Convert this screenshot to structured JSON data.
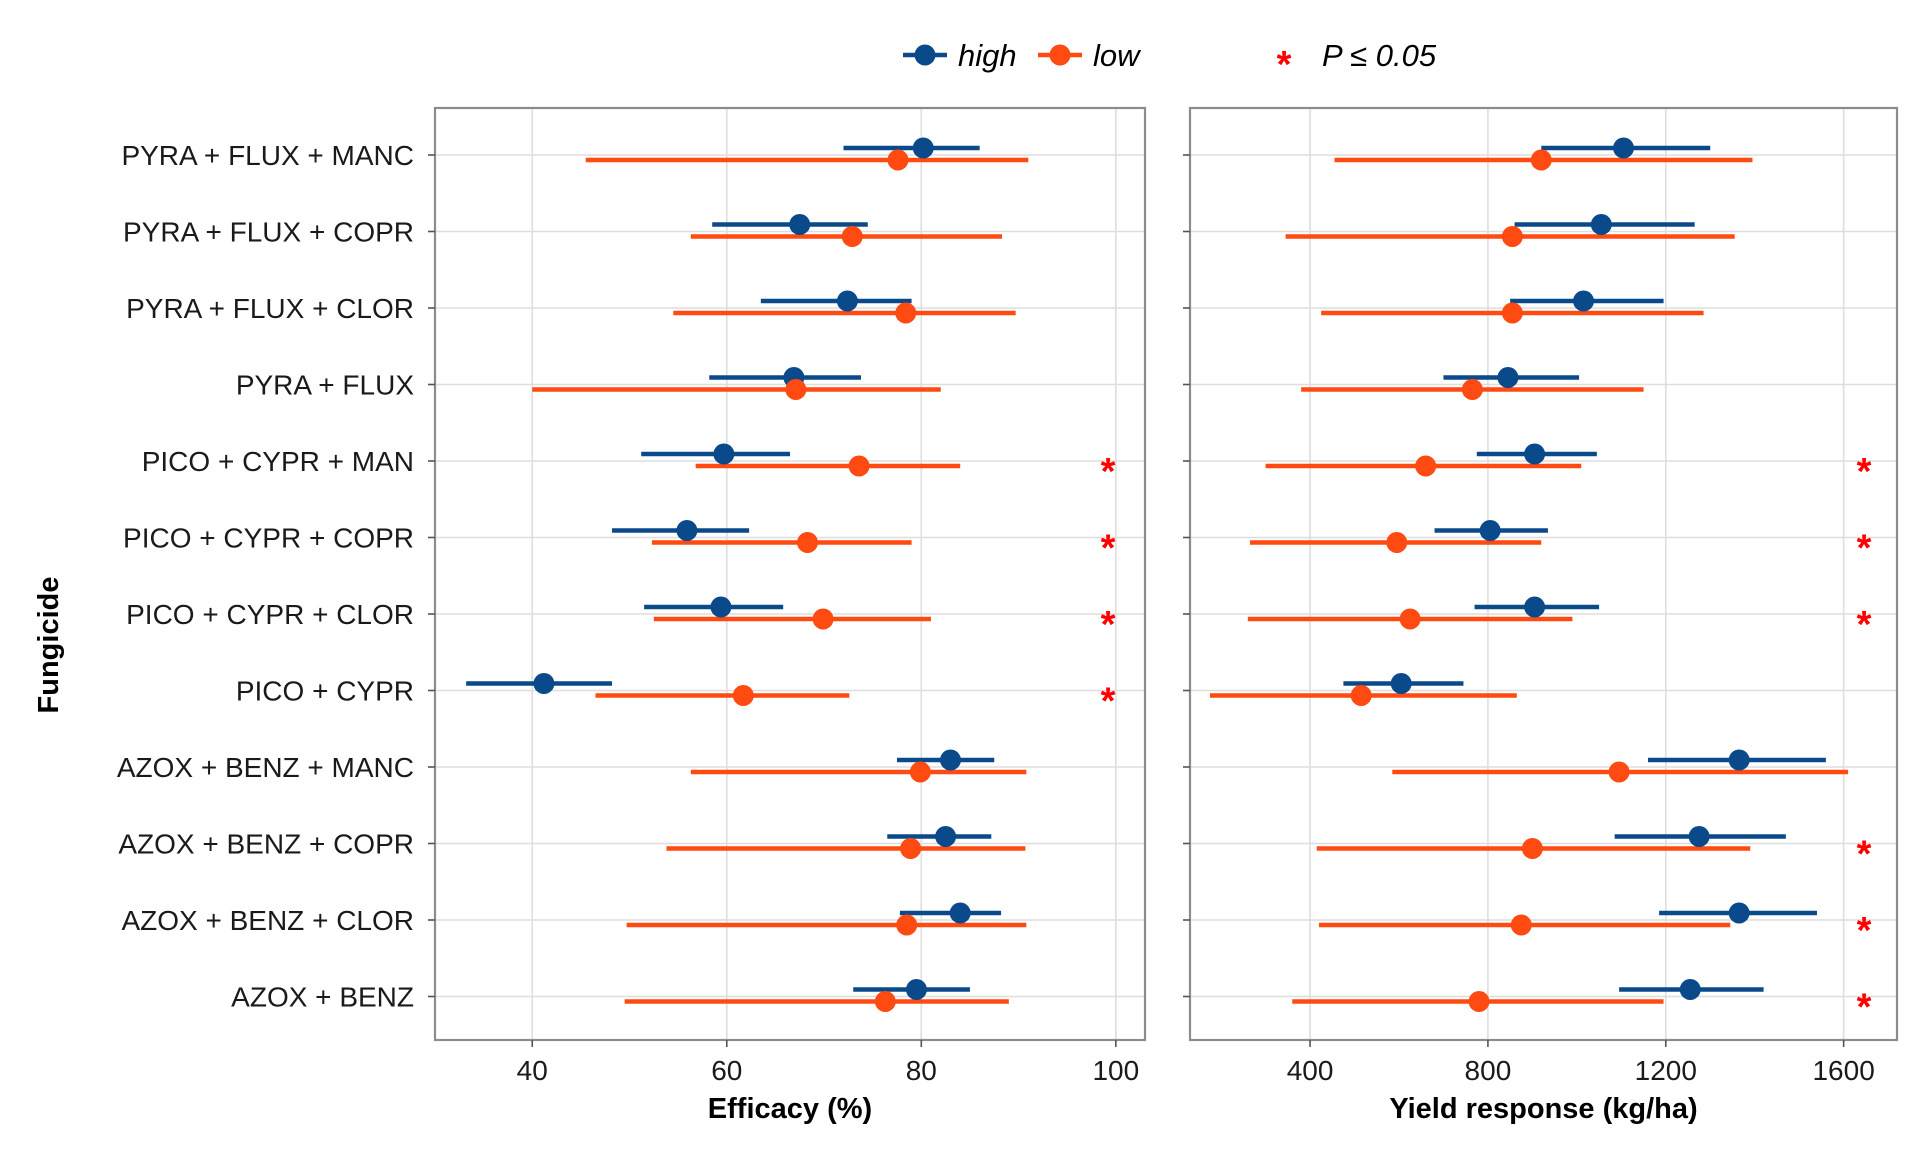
{
  "chart_data": {
    "type": "dot-interval",
    "y_axis_title": "Fungicide",
    "categories": [
      "PYRA + FLUX + MANC",
      "PYRA + FLUX + COPR",
      "PYRA + FLUX + CLOR",
      "PYRA + FLUX",
      "PICO + CYPR + MAN",
      "PICO + CYPR + COPR",
      "PICO + CYPR + CLOR",
      "PICO + CYPR",
      "AZOX + BENZ + MANC",
      "AZOX + BENZ + COPR",
      "AZOX + BENZ + CLOR",
      "AZOX + BENZ"
    ],
    "legend": {
      "series": [
        {
          "name": "high",
          "color": "#0b4a8a"
        },
        {
          "name": "low",
          "color": "#ff4a12"
        }
      ],
      "significance": {
        "symbol": "*",
        "label": "P ≤ 0.05",
        "color": "#ff0000"
      }
    },
    "panels": [
      {
        "id": "efficacy",
        "xlabel": "Efficacy (%)",
        "xlim": [
          30,
          103
        ],
        "xticks": [
          40,
          60,
          80,
          100
        ],
        "grid": true,
        "series": [
          {
            "name": "high",
            "values": [
              80.2,
              67.5,
              72.4,
              66.9,
              59.7,
              55.9,
              59.4,
              41.2,
              83.0,
              82.5,
              84.0,
              79.5
            ],
            "lower": [
              72.0,
              58.5,
              63.5,
              58.2,
              51.2,
              48.2,
              51.5,
              33.2,
              77.5,
              76.5,
              77.8,
              73.0
            ],
            "upper": [
              86.0,
              74.5,
              79.0,
              73.8,
              66.5,
              62.3,
              65.8,
              48.2,
              87.5,
              87.2,
              88.2,
              85.0
            ]
          },
          {
            "name": "low",
            "values": [
              77.6,
              72.9,
              78.4,
              67.1,
              73.6,
              68.3,
              69.9,
              61.7,
              79.9,
              78.9,
              78.5,
              76.3
            ],
            "lower": [
              45.5,
              56.3,
              54.5,
              40.0,
              56.8,
              52.3,
              52.5,
              46.5,
              56.3,
              53.8,
              49.7,
              49.5
            ],
            "upper": [
              91.0,
              88.3,
              89.7,
              82.0,
              84.0,
              79.0,
              81.0,
              72.6,
              90.8,
              90.7,
              90.8,
              89.0
            ]
          }
        ],
        "significant": [
          false,
          false,
          false,
          false,
          true,
          true,
          true,
          true,
          false,
          false,
          false,
          false
        ]
      },
      {
        "id": "yield",
        "xlabel": "Yield response (kg/ha)",
        "xlim": [
          130,
          1720
        ],
        "xticks": [
          400,
          800,
          1200,
          1600
        ],
        "grid": true,
        "series": [
          {
            "name": "high",
            "values": [
              1105,
              1055,
              1015,
              845,
              905,
              805,
              905,
              605,
              1365,
              1275,
              1365,
              1255
            ],
            "lower": [
              920,
              860,
              850,
              700,
              775,
              680,
              770,
              475,
              1160,
              1085,
              1185,
              1095
            ],
            "upper": [
              1300,
              1265,
              1195,
              1005,
              1045,
              935,
              1050,
              745,
              1560,
              1470,
              1540,
              1420
            ]
          },
          {
            "name": "low",
            "values": [
              920,
              855,
              855,
              765,
              660,
              595,
              625,
              515,
              1095,
              900,
              875,
              780
            ],
            "lower": [
              455,
              345,
              425,
              380,
              300,
              265,
              260,
              175,
              585,
              415,
              420,
              360
            ],
            "upper": [
              1395,
              1355,
              1285,
              1150,
              1010,
              920,
              990,
              865,
              1610,
              1390,
              1345,
              1195
            ]
          }
        ],
        "significant": [
          false,
          false,
          false,
          false,
          true,
          true,
          true,
          false,
          false,
          true,
          true,
          true
        ]
      }
    ]
  }
}
